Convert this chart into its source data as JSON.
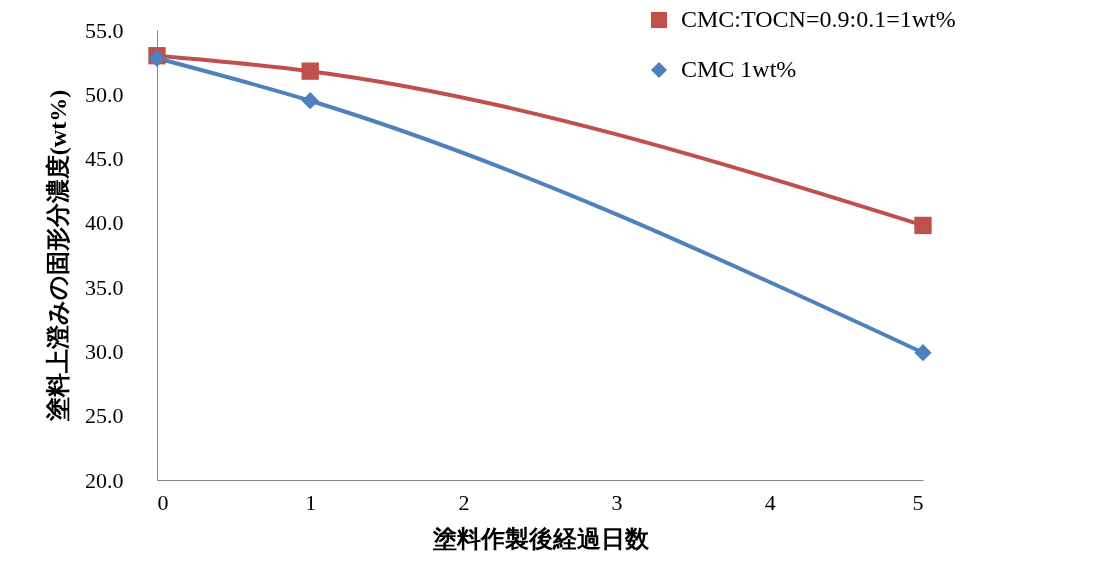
{
  "chart_data": {
    "type": "line",
    "xlabel": "塗料作製後経過日数",
    "ylabel": "塗料上澄みの固形分濃度(wt%)",
    "x": [
      0,
      1,
      5
    ],
    "series": [
      {
        "name": "CMC:TOCN=0.9:0.1=1wt%",
        "color": "#c0504d",
        "marker": "square",
        "values": [
          53.0,
          51.8,
          39.8
        ]
      },
      {
        "name": "CMC 1wt%",
        "color": "#4f81bd",
        "marker": "diamond",
        "values": [
          52.8,
          49.5,
          29.9
        ]
      }
    ],
    "xlim": [
      0,
      5
    ],
    "xticks": [
      0,
      1,
      2,
      3,
      4,
      5
    ],
    "ylim": [
      20,
      55
    ],
    "yticks": [
      {
        "value": 20,
        "label": "20.0"
      },
      {
        "value": 25,
        "label": "25.0"
      },
      {
        "value": 30,
        "label": "30.0"
      },
      {
        "value": 35,
        "label": "35.0"
      },
      {
        "value": 40,
        "label": "40.0"
      },
      {
        "value": 45,
        "label": "45.0"
      },
      {
        "value": 50,
        "label": "50.0"
      },
      {
        "value": 55,
        "label": "55.0"
      }
    ],
    "grid": false,
    "legend": "top right"
  }
}
